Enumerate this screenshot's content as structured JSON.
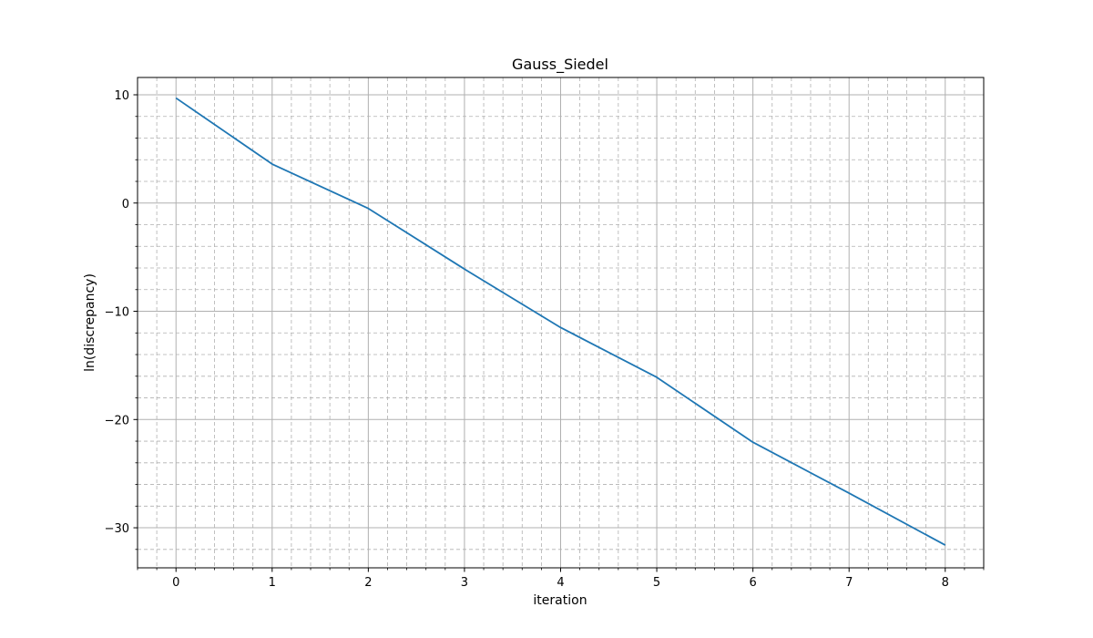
{
  "chart_data": {
    "type": "line",
    "title": "Gauss_Siedel",
    "xlabel": "iteration",
    "ylabel": "ln(discrepancy)",
    "xlim": [
      -0.4,
      8.4
    ],
    "ylim": [
      -33.7,
      11.6
    ],
    "xticks": [
      0,
      1,
      2,
      3,
      4,
      5,
      6,
      7,
      8
    ],
    "xtick_labels": [
      "0",
      "1",
      "2",
      "3",
      "4",
      "5",
      "6",
      "7",
      "8"
    ],
    "yticks": [
      -30,
      -20,
      -10,
      0,
      10
    ],
    "ytick_labels": [
      "−30",
      "−20",
      "−10",
      "0",
      "10"
    ],
    "x_minor_step": 0.2,
    "y_minor_step": 2,
    "grid": true,
    "series": [
      {
        "color": "#1f77b4",
        "x": [
          0,
          1,
          2,
          3,
          4,
          5,
          6,
          7,
          8
        ],
        "values": [
          9.7,
          3.6,
          -0.5,
          -6.1,
          -11.5,
          -16.1,
          -22.1,
          -26.8,
          -31.6
        ]
      }
    ]
  }
}
